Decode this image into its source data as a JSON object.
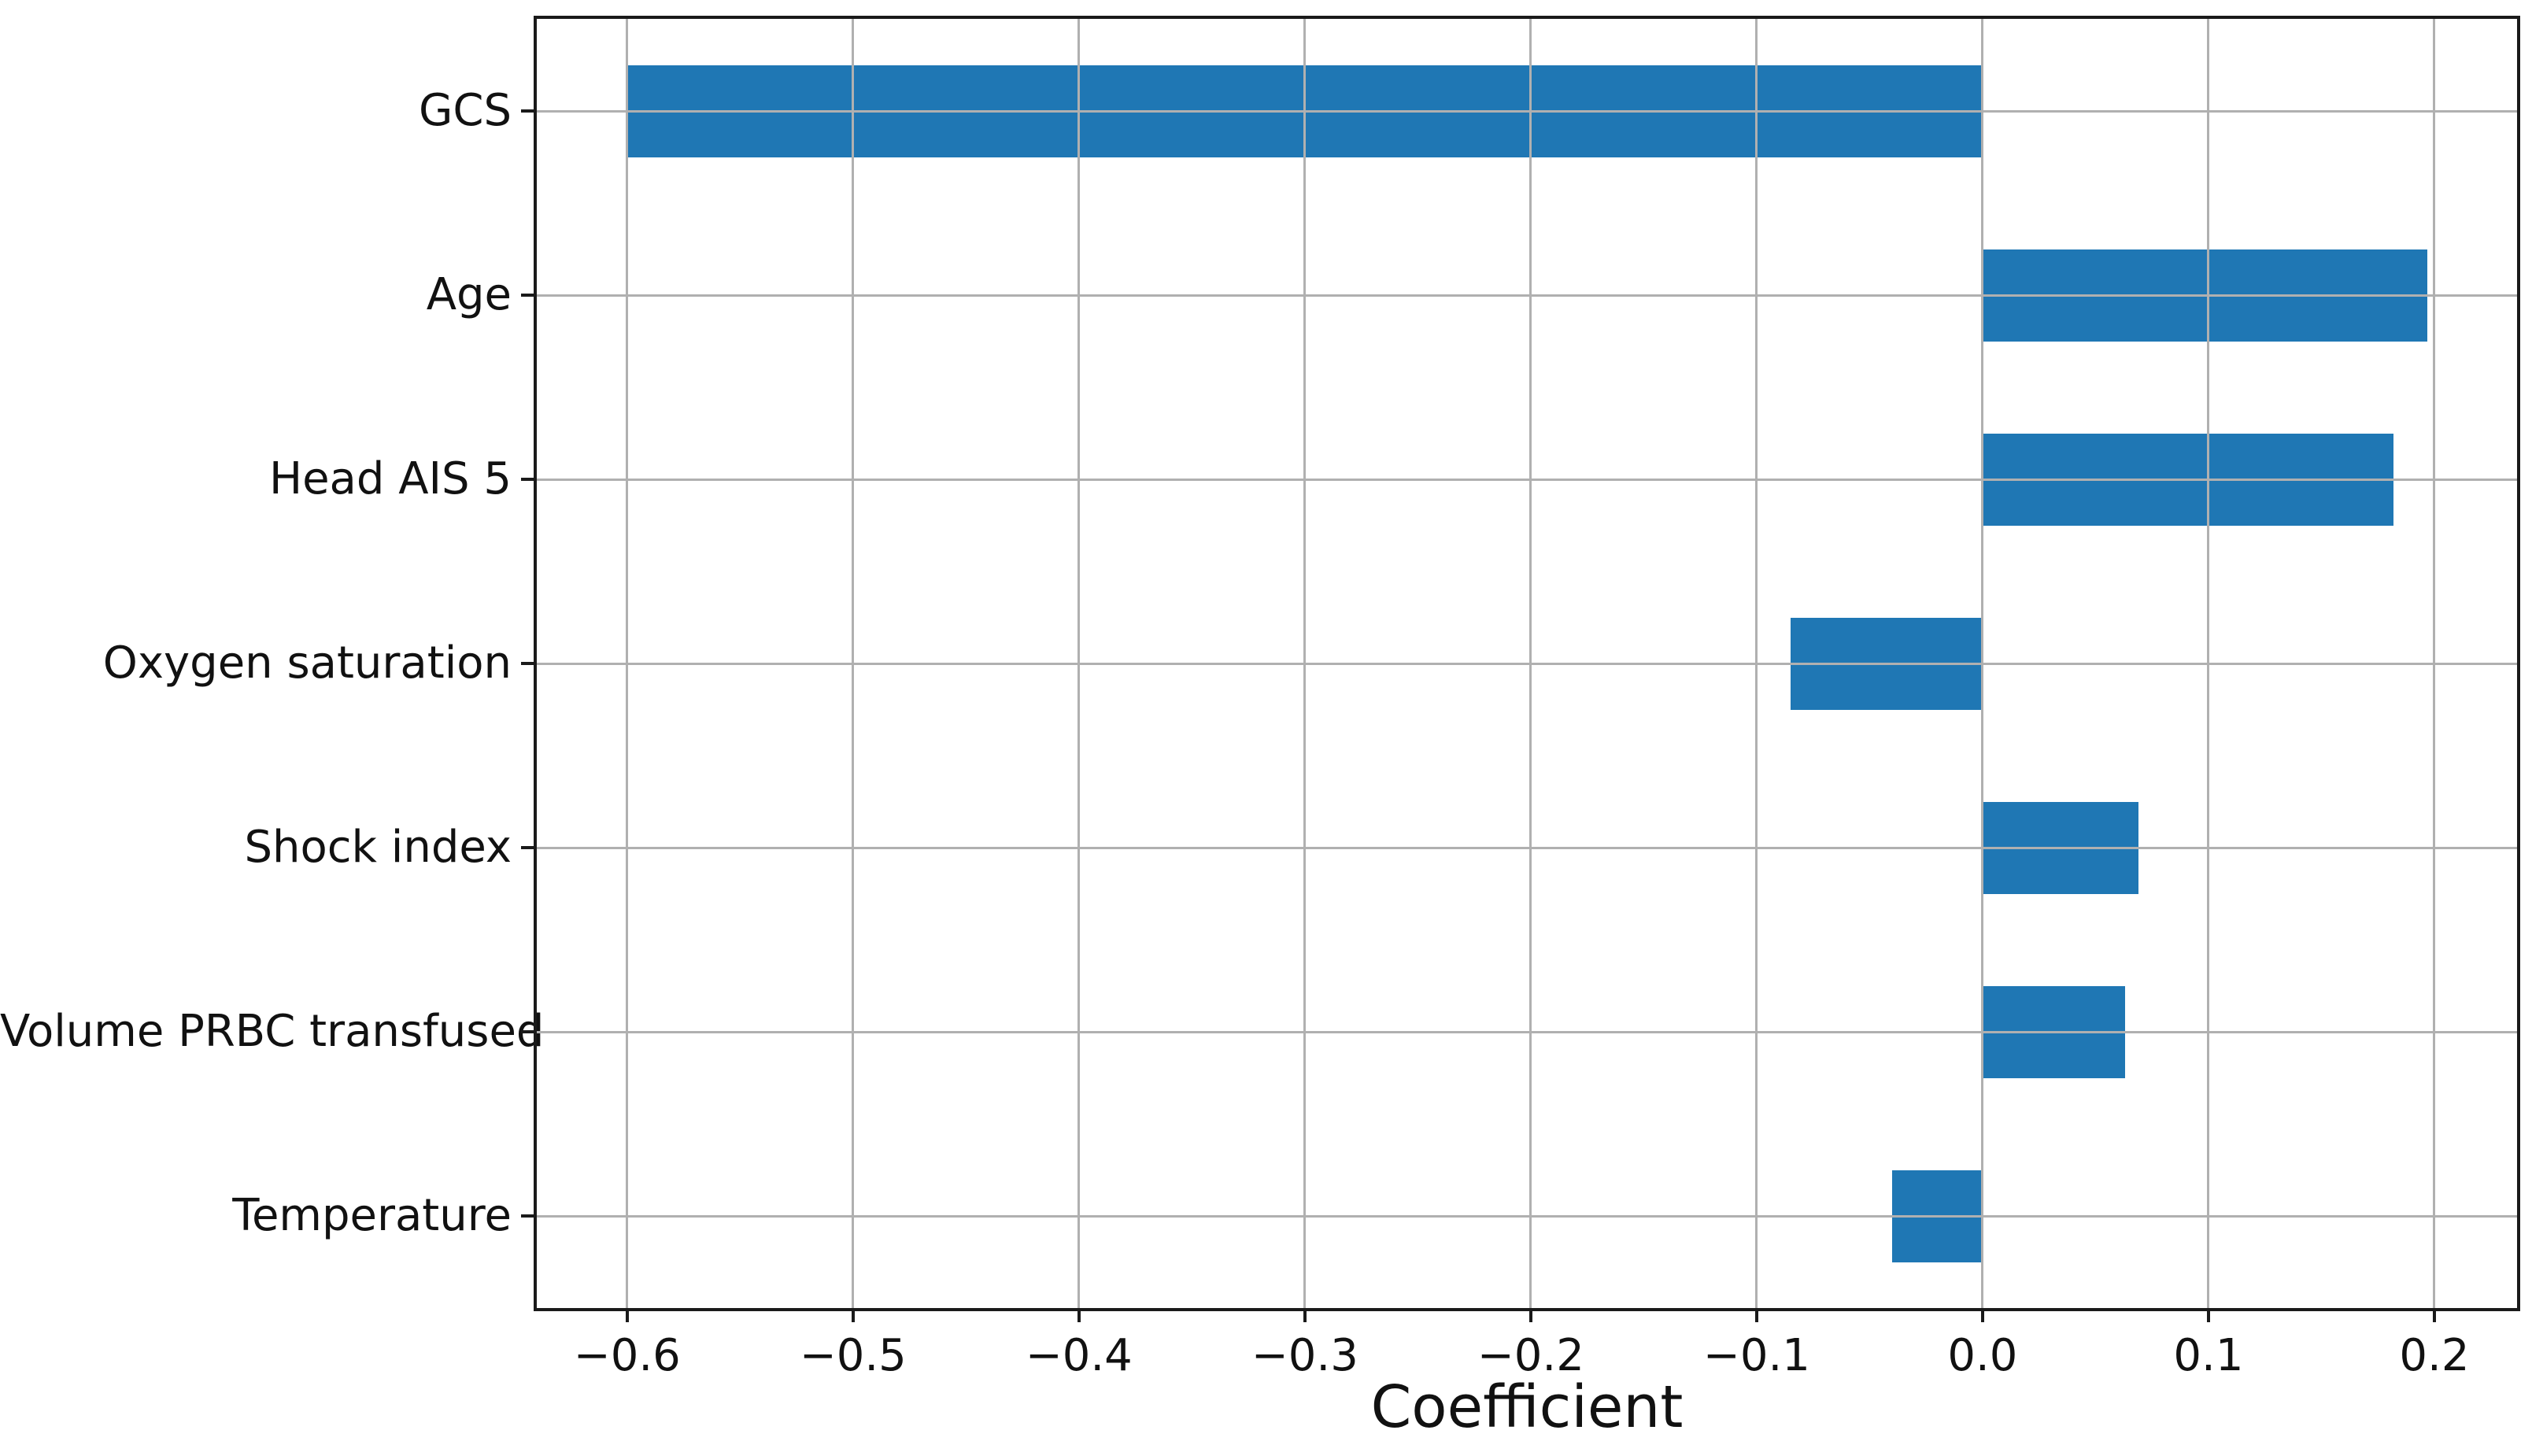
{
  "chart_data": {
    "type": "bar",
    "orientation": "horizontal",
    "title": "",
    "xlabel": "Coefficient",
    "ylabel": "",
    "categories": [
      "GCS",
      "Age",
      "Head AIS 5",
      "Oxygen saturation",
      "Shock index",
      "Volume PRBC transfused",
      "Temperature"
    ],
    "values": [
      -0.6,
      0.197,
      0.182,
      -0.085,
      0.069,
      0.063,
      -0.04
    ],
    "xlim": [
      -0.64,
      0.2366
    ],
    "xticks": [
      -0.6,
      -0.5,
      -0.4,
      -0.3,
      -0.2,
      -0.1,
      0.0,
      0.1,
      0.2
    ],
    "xtick_labels": [
      "−0.6",
      "−0.5",
      "−0.4",
      "−0.3",
      "−0.2",
      "−0.1",
      "0.0",
      "0.1",
      "0.2"
    ],
    "grid": true,
    "grid_above_bars": true,
    "legend": null,
    "bar_color": "#1f77b4",
    "grid_color": "#b0b0b0",
    "spine_color": "#1a1a1a",
    "text_color": "#111111",
    "background_color": "#ffffff"
  }
}
